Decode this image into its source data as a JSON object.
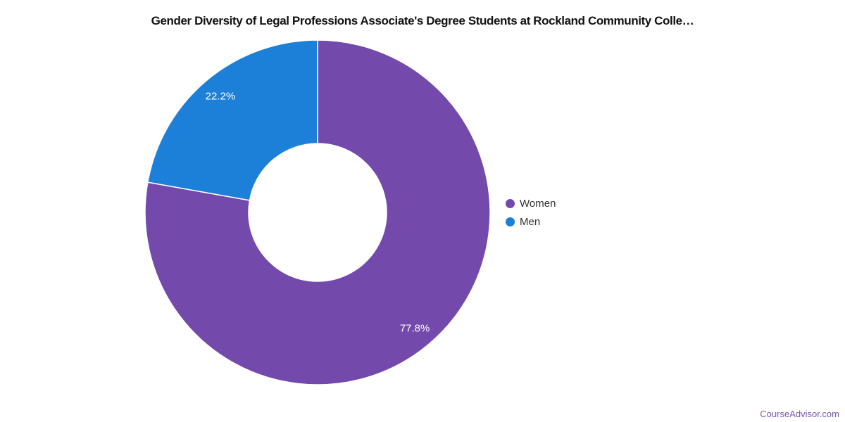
{
  "title": "Gender Diversity of Legal Professions Associate's Degree Students at Rockland Community Colle…",
  "watermark": "CourseAdvisor.com",
  "colors": {
    "women": "#7349ac",
    "men": "#1c80d8",
    "watermark": "#7a58b2",
    "slice_border": "#ffffff",
    "legend_text": "#333333",
    "title_text": "#111111"
  },
  "chart_data": {
    "type": "pie",
    "donut": true,
    "title": "Gender Diversity of Legal Professions Associate's Degree Students at Rockland Community Colle…",
    "categories": [
      "Women",
      "Men"
    ],
    "values": [
      77.8,
      22.2
    ],
    "labels": [
      "77.8%",
      "22.2%"
    ],
    "colors": [
      "#7349ac",
      "#1c80d8"
    ],
    "units": "percent",
    "start_angle_deg": 0,
    "direction": "clockwise",
    "legend_position": "right",
    "data_labels": "inside"
  },
  "legend": {
    "items": [
      {
        "label": "Women",
        "color": "#7349ac"
      },
      {
        "label": "Men",
        "color": "#1c80d8"
      }
    ]
  }
}
